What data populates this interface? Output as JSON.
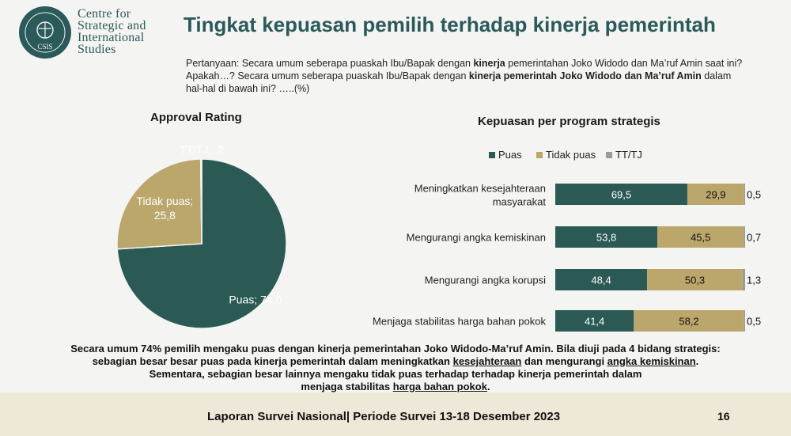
{
  "header": {
    "logo_lines": [
      "Centre for",
      "Strategic and",
      "International",
      "Studies"
    ],
    "logo_ring_text": "NALAR AJAR TERUSAN BUDI",
    "logo_mark": "CSIS",
    "title": "Tingkat kepuasan pemilih terhadap kinerja pemerintah"
  },
  "question": {
    "line1_a": "Pertanyaan: Secara umum seberapa puaskah Ibu/Bapak dengan ",
    "line1_b": "kinerja",
    "line1_c": " pemerintahan Joko Widodo dan Ma’ruf Amin saat ini?",
    "line2_a": "Apakah…?  Secara umum seberapa puaskah Ibu/Bapak dengan ",
    "line2_b": "kinerja pemerintah Joko Widodo dan Ma’ruf Amin",
    "line2_c": " dalam",
    "line3": "hal-hal di bawah ini? …..(%)"
  },
  "chart_data": [
    {
      "type": "pie",
      "title": "Approval Rating",
      "slices": [
        {
          "label": "Puas",
          "value": 74.0,
          "display": "Puas; 74,0",
          "color": "#2b5a55"
        },
        {
          "label": "Tidak puas",
          "value": 25.8,
          "display_line1": "Tidak puas;",
          "display_line2": "25,8",
          "color": "#bba66c"
        },
        {
          "label": "TT/TJ",
          "value": 0.2,
          "display": "TT/TJ; ,2",
          "color": "#9b9b9b"
        }
      ]
    },
    {
      "type": "bar",
      "stacked": true,
      "orientation": "horizontal",
      "title": "Kepuasan per program strategis",
      "legend_position": "top",
      "categories": [
        [
          "Meningkatkan kesejahteraan",
          "masyarakat"
        ],
        [
          "Mengurangi angka kemiskinan"
        ],
        [
          "Mengurangi angka korupsi"
        ],
        [
          "Menjaga stabilitas harga bahan pokok"
        ]
      ],
      "series": [
        {
          "name": "Puas",
          "color": "#2b5a55",
          "values": [
            69.5,
            53.8,
            48.4,
            41.4
          ],
          "labels": [
            "69,5",
            "53,8",
            "48,4",
            "41,4"
          ]
        },
        {
          "name": "Tidak puas",
          "color": "#bba66c",
          "values": [
            29.9,
            45.5,
            50.3,
            58.2
          ],
          "labels": [
            "29,9",
            "45,5",
            "50,3",
            "58,2"
          ]
        },
        {
          "name": "TT/TJ",
          "color": "#9b9b9b",
          "values": [
            0.5,
            0.7,
            1.3,
            0.5
          ],
          "labels": [
            "0,5",
            "0,7",
            "1,3",
            "0,5"
          ]
        }
      ]
    }
  ],
  "summary": {
    "line1": "Secara umum 74% pemilih mengaku puas dengan kinerja pemerintahan Joko Widodo-Ma’ruf Amin. Bila diuji pada 4 bidang strategis:",
    "line2_a": "sebagian besar besar puas pada kinerja pemerintah dalam meningkatkan ",
    "line2_b": "kesejahteraan",
    "line2_c": " dan mengurangi ",
    "line2_d": "angka kemiskinan",
    "line2_e": ".",
    "line3": "Sementara, sebagian besar lainnya mengaku tidak puas terhadap terhadap kinerja pemerintah dalam",
    "line4_a": "menjaga stabilitas ",
    "line4_b": "harga bahan pokok",
    "line4_c": "."
  },
  "footer": {
    "text": "Laporan Survei Nasional| Periode Survei 13-18 Desember 2023",
    "page": "16"
  }
}
